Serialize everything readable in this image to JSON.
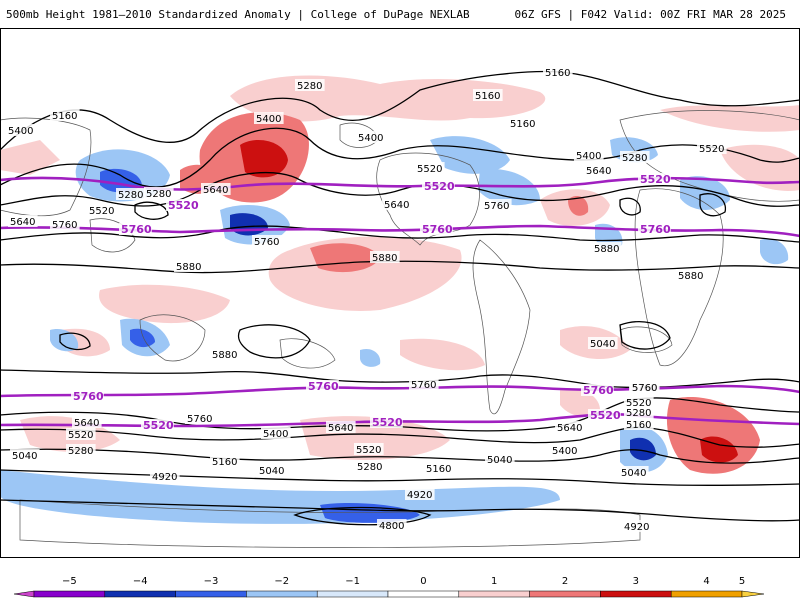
{
  "header": {
    "title_left": "500mb Height 1981–2010 Standardized Anomaly | College of DuPage NEXLAB",
    "title_right": "06Z GFS | F042 Valid: 00Z FRI MAR 28 2025"
  },
  "contour_labels": [
    {
      "id": "l01",
      "text": "5160",
      "purple": false
    },
    {
      "id": "l02",
      "text": "5280",
      "purple": false
    },
    {
      "id": "l03",
      "text": "5160",
      "purple": false
    },
    {
      "id": "l04",
      "text": "5160",
      "purple": false
    },
    {
      "id": "l05",
      "text": "5400",
      "purple": false
    },
    {
      "id": "l06",
      "text": "5160",
      "purple": false
    },
    {
      "id": "l07",
      "text": "5400",
      "purple": false
    },
    {
      "id": "l08",
      "text": "5400",
      "purple": false
    },
    {
      "id": "l09",
      "text": "5280",
      "purple": false
    },
    {
      "id": "l10",
      "text": "5520",
      "purple": false
    },
    {
      "id": "l11",
      "text": "5400",
      "purple": false
    },
    {
      "id": "l12",
      "text": "5280",
      "purple": false
    },
    {
      "id": "l13",
      "text": "5520",
      "purple": false
    },
    {
      "id": "l14",
      "text": "5640",
      "purple": false
    },
    {
      "id": "l15",
      "text": "5280",
      "purple": false
    },
    {
      "id": "l16",
      "text": "5520",
      "purple": false
    },
    {
      "id": "l17",
      "text": "5640",
      "purple": false
    },
    {
      "id": "l18",
      "text": "5760",
      "purple": false
    },
    {
      "id": "l19",
      "text": "5640",
      "purple": false
    },
    {
      "id": "l20",
      "text": "5760",
      "purple": false
    },
    {
      "id": "l21",
      "text": "5640",
      "purple": false
    },
    {
      "id": "l22",
      "text": "5760",
      "purple": false
    },
    {
      "id": "l23",
      "text": "5880",
      "purple": false
    },
    {
      "id": "l24",
      "text": "5880",
      "purple": false
    },
    {
      "id": "l25",
      "text": "5880",
      "purple": false
    },
    {
      "id": "l26",
      "text": "5880",
      "purple": false
    },
    {
      "id": "l27",
      "text": "5880",
      "purple": false
    },
    {
      "id": "l28",
      "text": "5760",
      "purple": false
    },
    {
      "id": "l29",
      "text": "5760",
      "purple": false
    },
    {
      "id": "l30",
      "text": "5760",
      "purple": false
    },
    {
      "id": "l31",
      "text": "5640",
      "purple": false
    },
    {
      "id": "l32",
      "text": "5520",
      "purple": false
    },
    {
      "id": "l33",
      "text": "5400",
      "purple": false
    },
    {
      "id": "l34",
      "text": "5040",
      "purple": false
    },
    {
      "id": "l35",
      "text": "5280",
      "purple": false
    },
    {
      "id": "l36",
      "text": "5640",
      "purple": false
    },
    {
      "id": "l37",
      "text": "5520",
      "purple": false
    },
    {
      "id": "l38",
      "text": "5280",
      "purple": false
    },
    {
      "id": "l39",
      "text": "5160",
      "purple": false
    },
    {
      "id": "l40",
      "text": "5040",
      "purple": false
    },
    {
      "id": "l41",
      "text": "5160",
      "purple": false
    },
    {
      "id": "l42",
      "text": "5040",
      "purple": false
    },
    {
      "id": "l43",
      "text": "4920",
      "purple": false
    },
    {
      "id": "l44",
      "text": "4920",
      "purple": false
    },
    {
      "id": "l45",
      "text": "4800",
      "purple": false
    },
    {
      "id": "l46",
      "text": "5640",
      "purple": false
    },
    {
      "id": "l47",
      "text": "5400",
      "purple": false
    },
    {
      "id": "l48",
      "text": "5160",
      "purple": false
    },
    {
      "id": "l49",
      "text": "5040",
      "purple": false
    },
    {
      "id": "l50",
      "text": "5760",
      "purple": false
    },
    {
      "id": "l51",
      "text": "5520",
      "purple": false
    },
    {
      "id": "l52",
      "text": "5280",
      "purple": false
    },
    {
      "id": "l53",
      "text": "4920",
      "purple": false
    },
    {
      "id": "l54",
      "text": "5040",
      "purple": false
    },
    {
      "id": "p01",
      "text": "5520",
      "purple": true
    },
    {
      "id": "p02",
      "text": "5520",
      "purple": true
    },
    {
      "id": "p03",
      "text": "5520",
      "purple": true
    },
    {
      "id": "p04",
      "text": "5760",
      "purple": true
    },
    {
      "id": "p05",
      "text": "5760",
      "purple": true
    },
    {
      "id": "p06",
      "text": "5760",
      "purple": true
    },
    {
      "id": "p07",
      "text": "5760",
      "purple": true
    },
    {
      "id": "p08",
      "text": "5760",
      "purple": true
    },
    {
      "id": "p09",
      "text": "5760",
      "purple": true
    },
    {
      "id": "p10",
      "text": "5520",
      "purple": true
    },
    {
      "id": "p11",
      "text": "5520",
      "purple": true
    },
    {
      "id": "p12",
      "text": "5520",
      "purple": true
    }
  ],
  "colorbar": {
    "ticks": [
      "−5",
      "−4",
      "−3",
      "−2",
      "−1",
      "0",
      "1",
      "2",
      "3",
      "4",
      "5"
    ],
    "colors": [
      "#cc44cc",
      "#8800cc",
      "#1030b0",
      "#3560e8",
      "#9cc6f5",
      "#d8e8fa",
      "#ffffff",
      "#f9cfcf",
      "#ee7777",
      "#cc1010",
      "#f0a000",
      "#f8d040"
    ]
  },
  "colors": {
    "contour": "#000000",
    "highlight_contour": "#a020c0"
  }
}
